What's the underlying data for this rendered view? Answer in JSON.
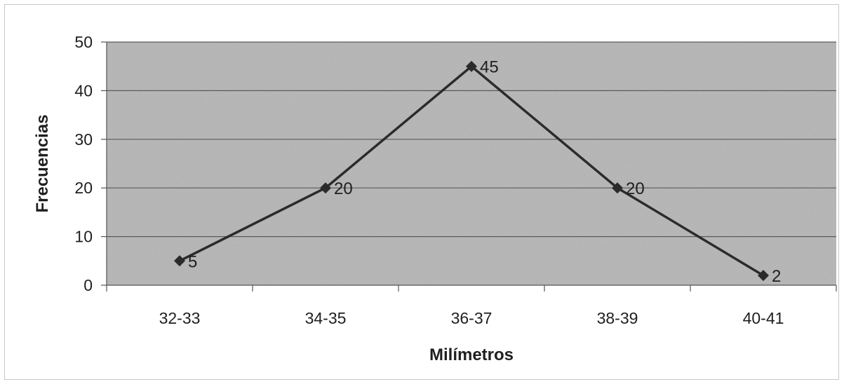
{
  "chart_data": {
    "type": "line",
    "categories": [
      "32-33",
      "34-35",
      "36-37",
      "38-39",
      "40-41"
    ],
    "series": [
      {
        "values": [
          5,
          20,
          45,
          20,
          2
        ]
      }
    ],
    "data_labels": [
      "5",
      "20",
      "45",
      "20",
      "2"
    ],
    "xlabel": "Milímetros",
    "ylabel": "Frecuencias",
    "ylim": [
      0,
      50
    ],
    "yticks": [
      "0",
      "10",
      "20",
      "30",
      "40",
      "50"
    ],
    "grid": true,
    "legend": "none",
    "colors": {
      "plot_background": "#bdbdbd",
      "line": "#2b2b2b",
      "gridline": "#5a5a5a",
      "marker": "#2b2b2b"
    }
  }
}
